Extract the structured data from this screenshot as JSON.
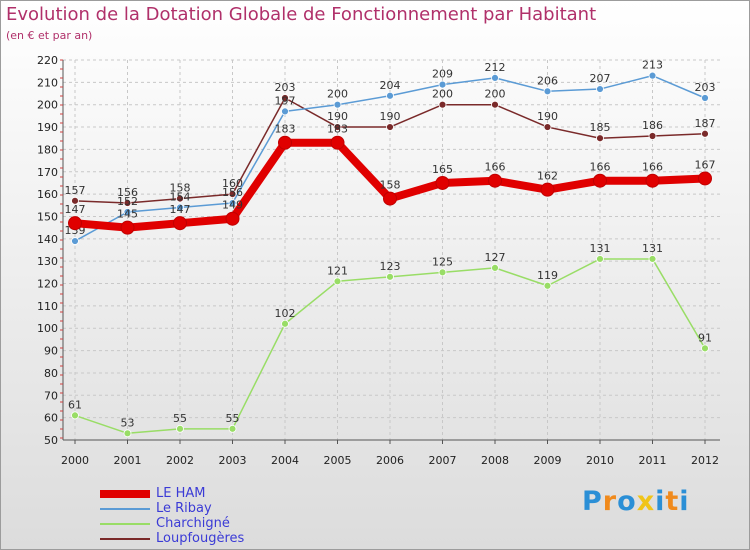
{
  "chart_data": {
    "type": "line",
    "title": "Evolution de la Dotation Globale de Fonctionnement par Habitant",
    "subtitle": "(en € et par an)",
    "xlabel": "",
    "ylabel": "",
    "categories": [
      "2000",
      "2001",
      "2002",
      "2003",
      "2004",
      "2005",
      "2006",
      "2007",
      "2008",
      "2009",
      "2010",
      "2011",
      "2012"
    ],
    "ylim": [
      50,
      220
    ],
    "yticks": [
      50,
      60,
      70,
      80,
      90,
      100,
      110,
      120,
      130,
      140,
      150,
      160,
      170,
      180,
      190,
      200,
      210,
      220
    ],
    "grid": true,
    "legend_position": "bottom-left",
    "series": [
      {
        "name": "LE HAM",
        "color": "#e00000",
        "values": [
          147,
          145,
          147,
          149,
          183,
          183,
          158,
          165,
          166,
          162,
          166,
          166,
          167
        ]
      },
      {
        "name": "Le Ribay",
        "color": "#5b9bd5",
        "values": [
          139,
          152,
          154,
          156,
          197,
          200,
          204,
          209,
          212,
          206,
          207,
          213,
          203
        ]
      },
      {
        "name": "Charchigné",
        "color": "#99dd66",
        "values": [
          61,
          53,
          55,
          55,
          102,
          121,
          123,
          125,
          127,
          119,
          131,
          131,
          91
        ]
      },
      {
        "name": "Loupfougères",
        "color": "#7a2a2a",
        "values": [
          157,
          156,
          158,
          160,
          203,
          190,
          190,
          200,
          200,
          190,
          185,
          186,
          187
        ]
      }
    ]
  },
  "logo": {
    "letters": [
      "P",
      "r",
      "o",
      "x",
      "i",
      "t",
      "i"
    ],
    "colors": [
      "#2b8fd6",
      "#f08a1c",
      "#2b8fd6",
      "#f0c419",
      "#2b8fd6",
      "#f08a1c",
      "#2b8fd6"
    ]
  }
}
